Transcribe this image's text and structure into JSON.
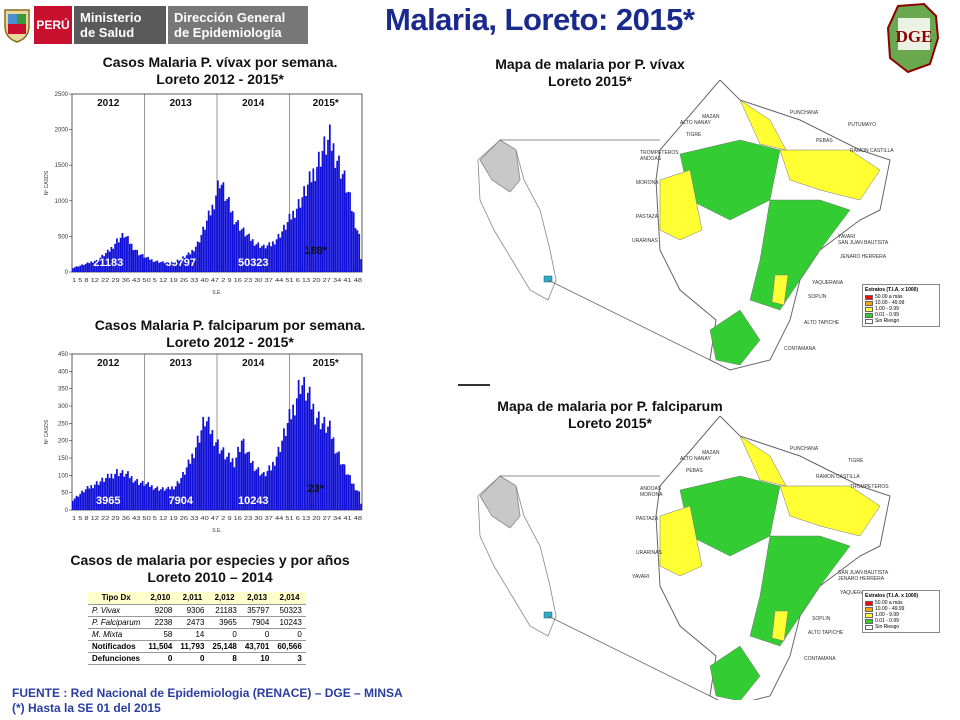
{
  "header": {
    "country": "PERÚ",
    "ministry_line1": "Ministerio",
    "ministry_line2": "de Salud",
    "directorate_line1": "Dirección General",
    "directorate_line2": "de Epidemiología",
    "main_title": "Malaria, Loreto: 2015*",
    "logo_text": "DGE"
  },
  "colors": {
    "bar_fill": "#1010d8",
    "title_blue": "#1a2a8c",
    "map_green": "#33cc33",
    "map_yellow": "#ffff33",
    "map_white": "#ffffff",
    "peru_gray": "#c8c8c8",
    "table_header": "#ffffcc"
  },
  "chart_data": [
    {
      "type": "bar",
      "title": "Casos Malaria P. vívax por semana.",
      "subtitle": "Loreto 2012 - 2015*",
      "xlabel": "S.E.",
      "ylabel": "Nº CASOS",
      "ylim": [
        0,
        2500
      ],
      "yticks": [
        "0",
        "500",
        "1000",
        "1500",
        "2000",
        "2500"
      ],
      "xtick_labels": "1 5 8 12 22 29 36 43 50 5 12 19 26 33 40 47 2 9 16 23 30 37 44 51 6 13 20 27 34 41 48",
      "year_labels": [
        "2012",
        "2013",
        "2014",
        "2015*"
      ],
      "year_totals": [
        "21183",
        "35797",
        "50323",
        "188*"
      ],
      "weekly_profile": [
        [
          0,
          60
        ],
        [
          8,
          120
        ],
        [
          14,
          180
        ],
        [
          20,
          300
        ],
        [
          24,
          440
        ],
        [
          28,
          520
        ],
        [
          32,
          380
        ],
        [
          36,
          260
        ],
        [
          40,
          200
        ],
        [
          44,
          160
        ],
        [
          48,
          140
        ],
        [
          52,
          130
        ],
        [
          56,
          150
        ],
        [
          60,
          200
        ],
        [
          64,
          260
        ],
        [
          68,
          400
        ],
        [
          72,
          640
        ],
        [
          76,
          900
        ],
        [
          80,
          1300
        ],
        [
          84,
          1000
        ],
        [
          88,
          760
        ],
        [
          92,
          600
        ],
        [
          96,
          480
        ],
        [
          100,
          400
        ],
        [
          104,
          350
        ],
        [
          108,
          380
        ],
        [
          112,
          500
        ],
        [
          116,
          640
        ],
        [
          120,
          820
        ],
        [
          124,
          1000
        ],
        [
          128,
          1200
        ],
        [
          132,
          1450
        ],
        [
          136,
          1700
        ],
        [
          140,
          1850
        ],
        [
          144,
          1600
        ],
        [
          148,
          1300
        ],
        [
          152,
          900
        ],
        [
          156,
          500
        ],
        [
          157,
          200
        ],
        [
          158,
          0
        ]
      ]
    },
    {
      "type": "bar",
      "title": "Casos Malaria P. falciparum por semana.",
      "subtitle": "Loreto 2012 - 2015*",
      "xlabel": "S.E.",
      "ylabel": "Nº CASOS",
      "ylim": [
        0,
        450
      ],
      "yticks": [
        "0",
        "50",
        "100",
        "150",
        "200",
        "250",
        "300",
        "350",
        "400",
        "450"
      ],
      "xtick_labels": "1 5 8 12 22 29 36 43 50 5 12 19 26 33 40 47 2 9 16 23 30 37 44 51 6 13 20 27 34 41 48",
      "year_labels": [
        "2012",
        "2013",
        "2014",
        "2015*"
      ],
      "year_totals": [
        "3965",
        "7904",
        "10243",
        "23*"
      ],
      "weekly_profile": [
        [
          0,
          30
        ],
        [
          6,
          55
        ],
        [
          12,
          75
        ],
        [
          18,
          90
        ],
        [
          24,
          110
        ],
        [
          30,
          100
        ],
        [
          36,
          80
        ],
        [
          42,
          70
        ],
        [
          48,
          60
        ],
        [
          52,
          60
        ],
        [
          56,
          70
        ],
        [
          60,
          100
        ],
        [
          64,
          140
        ],
        [
          68,
          200
        ],
        [
          72,
          260
        ],
        [
          76,
          220
        ],
        [
          80,
          180
        ],
        [
          84,
          150
        ],
        [
          88,
          140
        ],
        [
          92,
          200
        ],
        [
          96,
          150
        ],
        [
          100,
          120
        ],
        [
          104,
          100
        ],
        [
          108,
          120
        ],
        [
          112,
          170
        ],
        [
          116,
          230
        ],
        [
          120,
          290
        ],
        [
          124,
          370
        ],
        [
          128,
          330
        ],
        [
          132,
          280
        ],
        [
          136,
          250
        ],
        [
          140,
          230
        ],
        [
          144,
          170
        ],
        [
          148,
          120
        ],
        [
          152,
          80
        ],
        [
          156,
          50
        ],
        [
          157,
          20
        ],
        [
          158,
          0
        ]
      ]
    },
    {
      "type": "table",
      "title": "Casos de malaria por especies y por años",
      "subtitle": "Loreto 2010 – 2014",
      "columns": [
        "Tipo Dx",
        "2,010",
        "2,011",
        "2,012",
        "2,013",
        "2,014"
      ],
      "rows": [
        [
          "P. Vivax",
          "9208",
          "9306",
          "21183",
          "35797",
          "50323"
        ],
        [
          "P. Falciparum",
          "2238",
          "2473",
          "3965",
          "7904",
          "10243"
        ],
        [
          "M. Mixta",
          "58",
          "14",
          "0",
          "0",
          "0"
        ],
        [
          "Notificados",
          "11,504",
          "11,793",
          "25,148",
          "43,701",
          "60,566"
        ],
        [
          "Defunciones",
          "0",
          "0",
          "8",
          "10",
          "3"
        ]
      ]
    }
  ],
  "maps": [
    {
      "title": "Mapa de malaria por P. vívax",
      "subtitle": "Loreto 2015*",
      "provinces": [
        "MAZAN",
        "PUNCHANA",
        "ALTO NANAY",
        "PUTUMAYO",
        "TIGRE",
        "PEBAS",
        "RAMON CASTILLA",
        "TROMPETEROS",
        "ANDOAS",
        "MORONA",
        "PASTAZA",
        "URARINAS",
        "YAVARI",
        "SAN JUAN BAUTISTA",
        "JENARO HERRERA",
        "YAQUERANA",
        "SOPLIN",
        "ALTO TAPICHE",
        "CONTAMANA"
      ],
      "legend_title": "Estratos (T.I.A. x 1000)",
      "legend": [
        {
          "label": "50.00 a más",
          "color": "#ff0000"
        },
        {
          "label": "10.00 - 49.99",
          "color": "#ffa500"
        },
        {
          "label": "1.00 - 9.99",
          "color": "#ffff33"
        },
        {
          "label": "0.01 - 0.99",
          "color": "#33cc33"
        },
        {
          "label": "Sin Riesgo",
          "color": "#ffffff"
        }
      ]
    },
    {
      "title": "Mapa de malaria por P. falciparum",
      "subtitle": "Loreto 2015*",
      "provinces": [
        "MAZAN",
        "PUNCHANA",
        "ALTO NANAY",
        "TIGRE",
        "PEBAS",
        "RAMON CASTILLA",
        "TROMPETEROS",
        "ANDOAS",
        "MORONA",
        "PASTAZA",
        "URARINAS",
        "YAVARI",
        "SAN JUAN BAUTISTA",
        "JENARO HERRERA",
        "YAQUERANA",
        "SOPLIN",
        "ALTO TAPICHE",
        "CONTAMANA"
      ],
      "legend_title": "Estratos (T.I.A. x 1000)",
      "legend": [
        {
          "label": "50.00 a más",
          "color": "#ff0000"
        },
        {
          "label": "10.00 - 49.99",
          "color": "#ffa500"
        },
        {
          "label": "1.00 - 9.99",
          "color": "#ffff33"
        },
        {
          "label": "0.01 - 0.99",
          "color": "#33cc33"
        },
        {
          "label": "Sin Riesgo",
          "color": "#ffffff"
        }
      ]
    }
  ],
  "footer": {
    "source": "FUENTE : Red Nacional de Epidemiologia (RENACE) – DGE – MINSA",
    "note": "(*) Hasta la SE 01 del 2015"
  }
}
